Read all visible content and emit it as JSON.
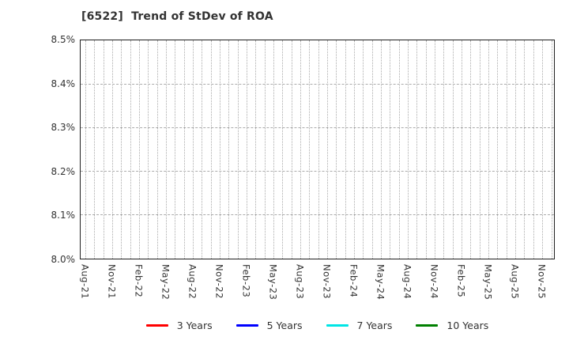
{
  "chart_data": {
    "type": "line",
    "title": "[6522]  Trend of StDev of ROA",
    "xlabel": "",
    "ylabel": "",
    "ylim": [
      8.0,
      8.5
    ],
    "y_tick_step": 0.1,
    "y_ticks": [
      "8.5%",
      "8.4%",
      "8.3%",
      "8.2%",
      "8.1%",
      "8.0%"
    ],
    "y_tick_values": [
      8.5,
      8.4,
      8.3,
      8.2,
      8.1,
      8.0
    ],
    "x_ticks": [
      "Aug-21",
      "Nov-21",
      "Feb-22",
      "May-22",
      "Aug-22",
      "Nov-22",
      "Feb-23",
      "May-23",
      "Aug-23",
      "Nov-23",
      "Feb-24",
      "May-24",
      "Aug-24",
      "Nov-24",
      "Feb-25",
      "May-25",
      "Aug-25",
      "Nov-25"
    ],
    "x_tick_every": 3,
    "x_gridline_count": 53,
    "grid": true,
    "gridline_style": {
      "vertical": "dotted",
      "horizontal": "dashed",
      "color": "#ababab"
    },
    "legend_position": "bottom",
    "series": [
      {
        "name": "3 Years",
        "color": "#ff0000",
        "values": []
      },
      {
        "name": "5 Years",
        "color": "#0000ff",
        "values": []
      },
      {
        "name": "7 Years",
        "color": "#00e5e5",
        "values": []
      },
      {
        "name": "10 Years",
        "color": "#008000",
        "values": []
      }
    ]
  }
}
